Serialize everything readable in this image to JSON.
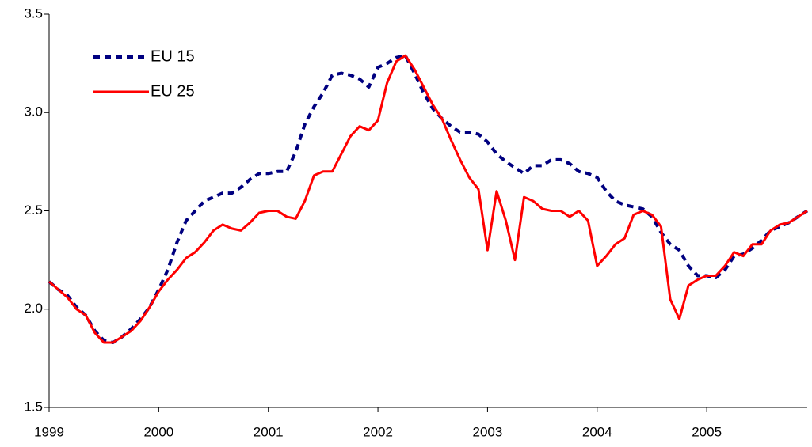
{
  "chart_data": {
    "type": "line",
    "x": [
      1999,
      1999.083,
      1999.167,
      1999.25,
      1999.333,
      1999.417,
      1999.5,
      1999.583,
      1999.667,
      1999.75,
      1999.833,
      1999.917,
      2000,
      2000.083,
      2000.167,
      2000.25,
      2000.333,
      2000.417,
      2000.5,
      2000.583,
      2000.667,
      2000.75,
      2000.833,
      2000.917,
      2001,
      2001.083,
      2001.167,
      2001.25,
      2001.333,
      2001.417,
      2001.5,
      2001.583,
      2001.667,
      2001.75,
      2001.833,
      2001.917,
      2002,
      2002.083,
      2002.167,
      2002.25,
      2002.333,
      2002.417,
      2002.5,
      2002.583,
      2002.667,
      2002.75,
      2002.833,
      2002.917,
      2003,
      2003.083,
      2003.167,
      2003.25,
      2003.333,
      2003.417,
      2003.5,
      2003.583,
      2003.667,
      2003.75,
      2003.833,
      2003.917,
      2004,
      2004.083,
      2004.167,
      2004.25,
      2004.333,
      2004.417,
      2004.5,
      2004.583,
      2004.667,
      2004.75,
      2004.833,
      2004.917,
      2005,
      2005.083,
      2005.167,
      2005.25,
      2005.333,
      2005.417,
      2005.5,
      2005.583,
      2005.667,
      2005.75,
      2005.833,
      2005.917
    ],
    "series": [
      {
        "name": "EU 15",
        "color": "#000080",
        "dash": "dashed",
        "values": [
          2.14,
          2.1,
          2.07,
          2.01,
          1.97,
          1.89,
          1.84,
          1.83,
          1.86,
          1.9,
          1.95,
          2.01,
          2.1,
          2.2,
          2.34,
          2.45,
          2.5,
          2.55,
          2.57,
          2.59,
          2.59,
          2.62,
          2.66,
          2.69,
          2.69,
          2.7,
          2.7,
          2.8,
          2.94,
          3.03,
          3.1,
          3.19,
          3.2,
          3.19,
          3.17,
          3.13,
          3.23,
          3.25,
          3.28,
          3.29,
          3.2,
          3.1,
          3.02,
          2.97,
          2.93,
          2.9,
          2.9,
          2.89,
          2.85,
          2.79,
          2.75,
          2.72,
          2.69,
          2.73,
          2.73,
          2.76,
          2.76,
          2.74,
          2.7,
          2.69,
          2.67,
          2.6,
          2.55,
          2.53,
          2.52,
          2.51,
          2.47,
          2.39,
          2.33,
          2.3,
          2.22,
          2.17,
          2.17,
          2.16,
          2.2,
          2.27,
          2.28,
          2.31,
          2.35,
          2.4,
          2.42,
          2.44,
          2.47,
          2.5
        ]
      },
      {
        "name": "EU 25",
        "color": "#ff0000",
        "dash": "solid",
        "values": [
          2.14,
          2.1,
          2.06,
          2.0,
          1.97,
          1.88,
          1.83,
          1.83,
          1.86,
          1.89,
          1.94,
          2.01,
          2.09,
          2.15,
          2.2,
          2.26,
          2.29,
          2.34,
          2.4,
          2.43,
          2.41,
          2.4,
          2.44,
          2.49,
          2.5,
          2.5,
          2.47,
          2.46,
          2.55,
          2.68,
          2.7,
          2.7,
          2.79,
          2.88,
          2.93,
          2.91,
          2.96,
          3.15,
          3.26,
          3.29,
          3.22,
          3.13,
          3.04,
          2.97,
          2.86,
          2.76,
          2.67,
          2.61,
          2.3,
          2.6,
          2.45,
          2.25,
          2.57,
          2.55,
          2.51,
          2.5,
          2.5,
          2.47,
          2.5,
          2.45,
          2.22,
          2.27,
          2.33,
          2.36,
          2.48,
          2.5,
          2.48,
          2.42,
          2.05,
          1.95,
          2.12,
          2.15,
          2.17,
          2.17,
          2.22,
          2.29,
          2.27,
          2.33,
          2.33,
          2.4,
          2.43,
          2.44,
          2.47,
          2.5
        ]
      }
    ],
    "xlim": [
      1999,
      2005.917
    ],
    "xticks": [
      1999,
      2000,
      2001,
      2002,
      2003,
      2004,
      2005
    ],
    "ylim": [
      1.5,
      3.5
    ],
    "yticks": [
      3.5,
      {
        "value": 3,
        "label": "3.0"
      },
      2.5,
      {
        "value": 2,
        "label": "2.0"
      },
      1.5
    ],
    "legend": "upper-left",
    "grid": false
  }
}
